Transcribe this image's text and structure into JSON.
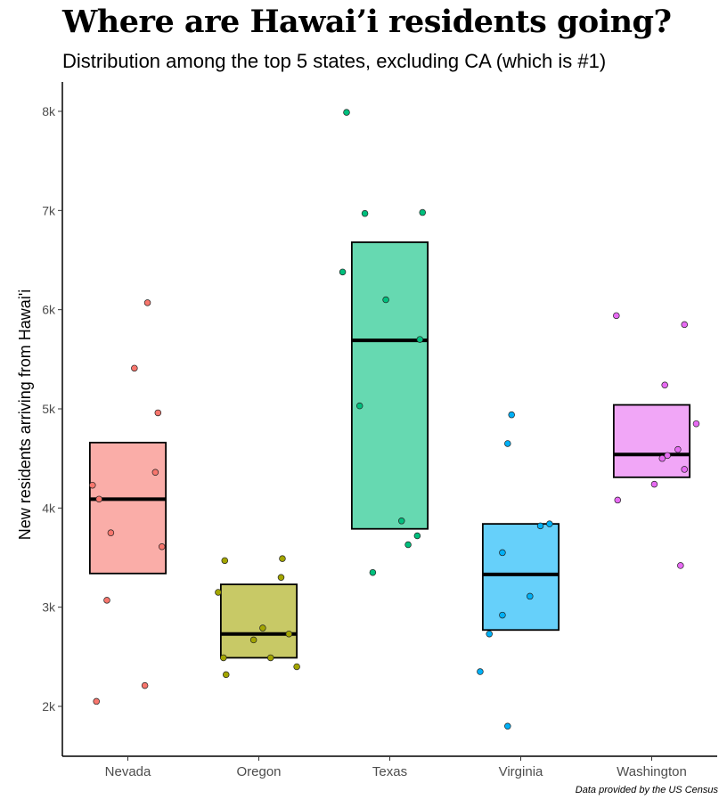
{
  "chart_data": {
    "type": "box",
    "title": "Where are Hawai’i residents going?",
    "subtitle": "Distribution among the top 5 states, excluding CA (which is #1)",
    "xlabel": "",
    "ylabel": "New residents arriving from Hawai'i",
    "caption": "Data provided by the US Census",
    "ylim": [
      1500,
      8300
    ],
    "yticks": [
      2000,
      3000,
      4000,
      5000,
      6000,
      7000,
      8000
    ],
    "ytick_labels": [
      "2k",
      "3k",
      "4k",
      "5k",
      "6k",
      "7k",
      "8k"
    ],
    "categories": [
      "Nevada",
      "Oregon",
      "Texas",
      "Virginia",
      "Washington"
    ],
    "colors": [
      "#F8766D",
      "#A3A500",
      "#00BF7D",
      "#00B0F6",
      "#E76BF3"
    ],
    "fill_colors": [
      "#FAADA8",
      "#C8C966",
      "#66D9B1",
      "#66D0FA",
      "#F1A6F7"
    ],
    "boxes": [
      {
        "category": "Nevada",
        "q1": 3340,
        "median": 4090,
        "q3": 4660
      },
      {
        "category": "Oregon",
        "q1": 2490,
        "median": 2730,
        "q3": 3230
      },
      {
        "category": "Texas",
        "q1": 3790,
        "median": 5690,
        "q3": 6680
      },
      {
        "category": "Virginia",
        "q1": 2770,
        "median": 3330,
        "q3": 3840
      },
      {
        "category": "Washington",
        "q1": 4310,
        "median": 4540,
        "q3": 5040
      }
    ],
    "points": [
      {
        "category": "Nevada",
        "values": [
          6070,
          5410,
          4960,
          4360,
          4230,
          4090,
          3750,
          3610,
          3070,
          2210,
          2050
        ]
      },
      {
        "category": "Oregon",
        "values": [
          3490,
          3470,
          3300,
          3150,
          2790,
          2730,
          2670,
          2490,
          2490,
          2400,
          2320
        ]
      },
      {
        "category": "Texas",
        "values": [
          7990,
          6980,
          6970,
          6380,
          6100,
          5700,
          5030,
          3870,
          3720,
          3630,
          3350
        ]
      },
      {
        "category": "Virginia",
        "values": [
          4940,
          4650,
          3840,
          3820,
          3550,
          3110,
          2920,
          2730,
          2350,
          1800
        ]
      },
      {
        "category": "Washington",
        "values": [
          5940,
          5850,
          5240,
          4850,
          4590,
          4530,
          4500,
          4390,
          4240,
          4080,
          3420
        ]
      }
    ],
    "jitter": [
      [
        0.15,
        0.05,
        0.23,
        0.21,
        -0.27,
        -0.22,
        -0.13,
        0.26,
        -0.16,
        0.13,
        -0.24
      ],
      [
        0.18,
        -0.26,
        0.17,
        -0.31,
        0.03,
        0.23,
        -0.04,
        0.09,
        -0.27,
        0.29,
        -0.25
      ],
      [
        -0.33,
        0.25,
        -0.19,
        -0.36,
        -0.03,
        0.23,
        -0.23,
        0.09,
        0.21,
        0.14,
        -0.13
      ],
      [
        -0.07,
        -0.1,
        0.22,
        0.15,
        -0.14,
        0.07,
        -0.14,
        -0.24,
        -0.31,
        -0.1
      ],
      [
        -0.27,
        0.25,
        0.1,
        0.34,
        0.2,
        0.12,
        0.08,
        0.25,
        0.02,
        -0.26,
        0.22
      ]
    ],
    "grid": false,
    "legend": "none"
  }
}
